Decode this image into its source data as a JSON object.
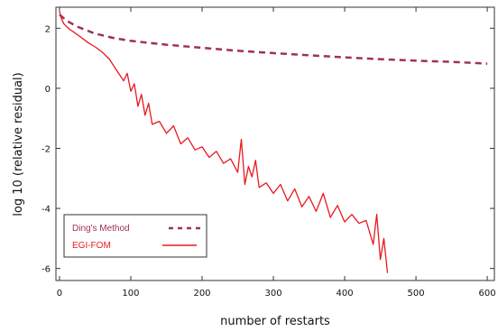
{
  "chart_data": {
    "type": "line",
    "title": "",
    "xlabel": "number of restarts",
    "ylabel": "log 10 (relative residual)",
    "xlim": [
      -5,
      610
    ],
    "ylim": [
      -6.4,
      2.7
    ],
    "xticks": [
      0,
      100,
      200,
      300,
      400,
      500,
      600
    ],
    "xtick_labels": [
      "0",
      "100",
      "200",
      "300",
      "400",
      "500",
      "600"
    ],
    "yticks": [
      2,
      0,
      -2,
      -4,
      -6
    ],
    "ytick_labels": [
      "2",
      "0",
      "-2",
      "-4",
      "-6"
    ],
    "grid": false,
    "legend_position": "bottom-left",
    "series": [
      {
        "name": "Ding's Method",
        "color": "#a0305a",
        "style": "dashed",
        "x": [
          0,
          10,
          25,
          50,
          75,
          100,
          150,
          200,
          250,
          300,
          350,
          400,
          450,
          500,
          550,
          600
        ],
        "y": [
          2.45,
          2.25,
          2.05,
          1.82,
          1.68,
          1.58,
          1.45,
          1.35,
          1.25,
          1.17,
          1.1,
          1.03,
          0.97,
          0.92,
          0.88,
          0.82
        ]
      },
      {
        "name": "EGI-FOM",
        "color": "#e8191e",
        "style": "solid",
        "x": [
          0,
          3,
          6,
          10,
          15,
          20,
          30,
          40,
          50,
          60,
          70,
          80,
          90,
          95,
          100,
          105,
          110,
          115,
          120,
          125,
          130,
          140,
          150,
          160,
          170,
          180,
          190,
          200,
          210,
          220,
          230,
          240,
          250,
          255,
          260,
          265,
          270,
          275,
          280,
          290,
          300,
          310,
          320,
          330,
          340,
          350,
          360,
          370,
          380,
          390,
          400,
          410,
          420,
          430,
          440,
          445,
          450,
          455,
          460
        ],
        "y": [
          2.55,
          2.3,
          2.15,
          2.05,
          1.95,
          1.87,
          1.7,
          1.52,
          1.38,
          1.2,
          0.97,
          0.6,
          0.25,
          0.5,
          -0.1,
          0.15,
          -0.6,
          -0.2,
          -0.9,
          -0.5,
          -1.2,
          -1.1,
          -1.5,
          -1.25,
          -1.85,
          -1.65,
          -2.05,
          -1.95,
          -2.3,
          -2.1,
          -2.5,
          -2.35,
          -2.8,
          -1.7,
          -3.2,
          -2.6,
          -2.95,
          -2.4,
          -3.3,
          -3.15,
          -3.5,
          -3.2,
          -3.75,
          -3.35,
          -3.95,
          -3.6,
          -4.1,
          -3.5,
          -4.3,
          -3.9,
          -4.45,
          -4.2,
          -4.5,
          -4.4,
          -5.2,
          -4.2,
          -5.7,
          -5.0,
          -6.15
        ]
      }
    ]
  }
}
